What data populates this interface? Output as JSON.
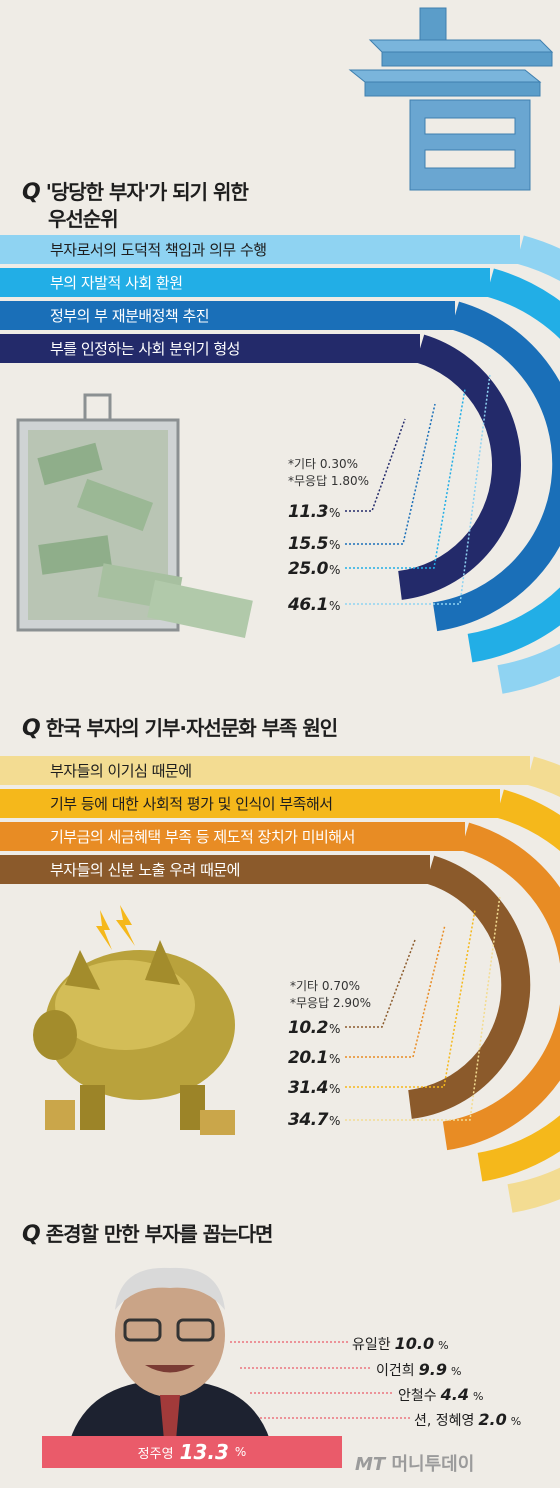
{
  "colors": {
    "blue": [
      "#8fd3f2",
      "#22aee6",
      "#1a6fb8",
      "#232a6a"
    ],
    "orange": [
      "#f3dc92",
      "#f5b81b",
      "#e88c24",
      "#8b5a2b"
    ],
    "top_bar": "#ea5b6a",
    "background": "#efece6"
  },
  "section1": {
    "question_mark": "Q",
    "title_line1": "'당당한 부자'가 되기 위한",
    "title_line2": "우선순위",
    "notes": [
      "*기타 0.30%",
      "*무응답 1.80%"
    ],
    "items": [
      {
        "label": "부자로서의 도덕적 책임과 의무 수행",
        "value": "46.1",
        "unit": "%"
      },
      {
        "label": "부의 자발적 사회 환원",
        "value": "25.0",
        "unit": "%"
      },
      {
        "label": "정부의 부 재분배정책 추진",
        "value": "15.5",
        "unit": "%"
      },
      {
        "label": "부를 인정하는 사회 분위기 형성",
        "value": "11.3",
        "unit": "%"
      }
    ]
  },
  "section2": {
    "question_mark": "Q",
    "title": "한국 부자의 기부·자선문화 부족 원인",
    "notes": [
      "*기타 0.70%",
      "*무응답 2.90%"
    ],
    "items": [
      {
        "label": "부자들의 이기심 때문에",
        "value": "34.7",
        "unit": "%"
      },
      {
        "label": "기부 등에 대한 사회적 평가 및 인식이 부족해서",
        "value": "31.4",
        "unit": "%"
      },
      {
        "label": "기부금의 세금혜택 부족 등 제도적 장치가 미비해서",
        "value": "20.1",
        "unit": "%"
      },
      {
        "label": "부자들의 신분 노출 우려 때문에",
        "value": "10.2",
        "unit": "%"
      }
    ]
  },
  "section3": {
    "question_mark": "Q",
    "title": "존경할 만한 부자를 꼽는다면",
    "top": {
      "name": "정주영",
      "value": "13.3",
      "unit": "%"
    },
    "others": [
      {
        "name": "유일한",
        "value": "10.0",
        "unit": "%"
      },
      {
        "name": "이건희",
        "value": "9.9",
        "unit": "%"
      },
      {
        "name": "안철수",
        "value": "4.4",
        "unit": "%"
      },
      {
        "name": "션, 정혜영",
        "value": "2.0",
        "unit": "%"
      }
    ]
  },
  "watermark": {
    "brand": "MT",
    "text": "머니투데이"
  },
  "chart_data": [
    {
      "type": "bar",
      "title": "'당당한 부자'가 되기 위한 우선순위",
      "categories": [
        "부자로서의 도덕적 책임과 의무 수행",
        "부의 자발적 사회 환원",
        "정부의 부 재분배정책 추진",
        "부를 인정하는 사회 분위기 형성",
        "기타",
        "무응답"
      ],
      "values": [
        46.1,
        25.0,
        15.5,
        11.3,
        0.3,
        1.8
      ]
    },
    {
      "type": "bar",
      "title": "한국 부자의 기부·자선문화 부족 원인",
      "categories": [
        "부자들의 이기심 때문에",
        "기부 등에 대한 사회적 평가 및 인식이 부족해서",
        "기부금의 세금혜택 부족 등 제도적 장치가 미비해서",
        "부자들의 신분 노출 우려 때문에",
        "기타",
        "무응답"
      ],
      "values": [
        34.7,
        31.4,
        20.1,
        10.2,
        0.7,
        2.9
      ]
    },
    {
      "type": "bar",
      "title": "존경할 만한 부자를 꼽는다면",
      "categories": [
        "정주영",
        "유일한",
        "이건희",
        "안철수",
        "션, 정혜영"
      ],
      "values": [
        13.3,
        10.0,
        9.9,
        4.4,
        2.0
      ]
    }
  ]
}
